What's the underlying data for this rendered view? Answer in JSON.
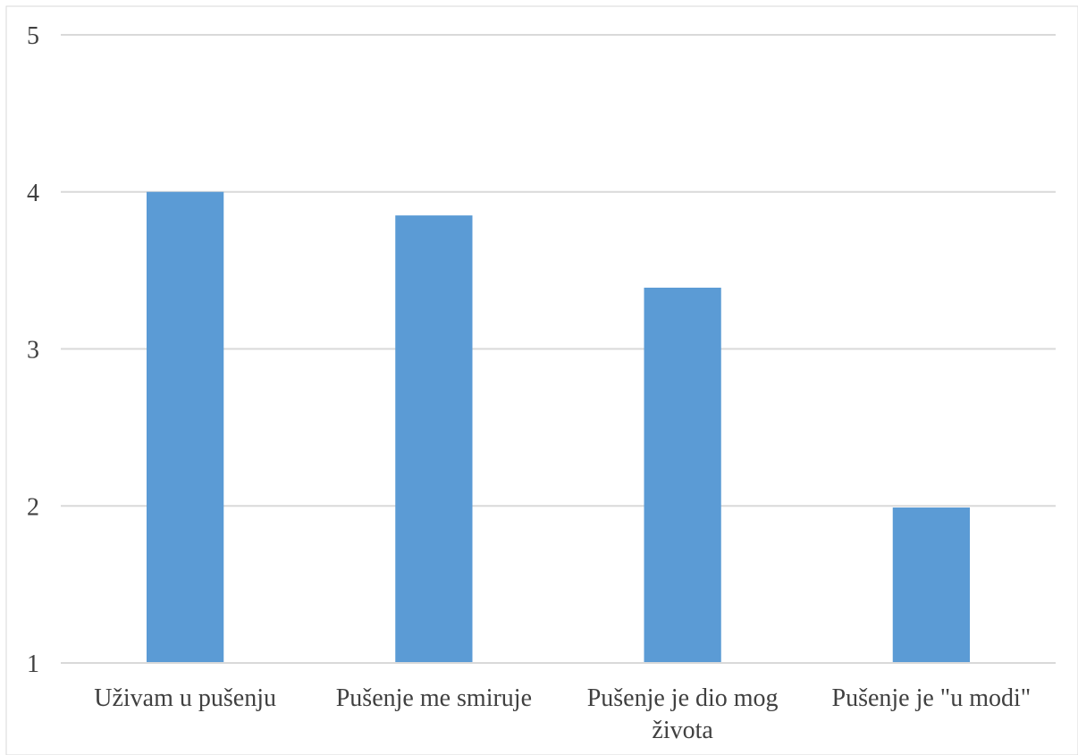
{
  "chart_data": {
    "type": "bar",
    "categories": [
      [
        "Uživam u pušenju"
      ],
      [
        "Pušenje me smiruje"
      ],
      [
        "Pušenje je dio mog",
        "života"
      ],
      [
        "Pušenje je \"u modi\""
      ]
    ],
    "values": [
      4.0,
      3.85,
      3.39,
      1.99
    ],
    "ylim": [
      1,
      5
    ],
    "yticks": [
      "1",
      "2",
      "3",
      "4",
      "5"
    ],
    "grid": true,
    "legend": "none",
    "colors": {
      "bar": "#5b9bd5",
      "grid": "#d9d9d9",
      "axis": "#d9d9d9",
      "text": "#404040",
      "border": "#d9d9d9"
    }
  }
}
